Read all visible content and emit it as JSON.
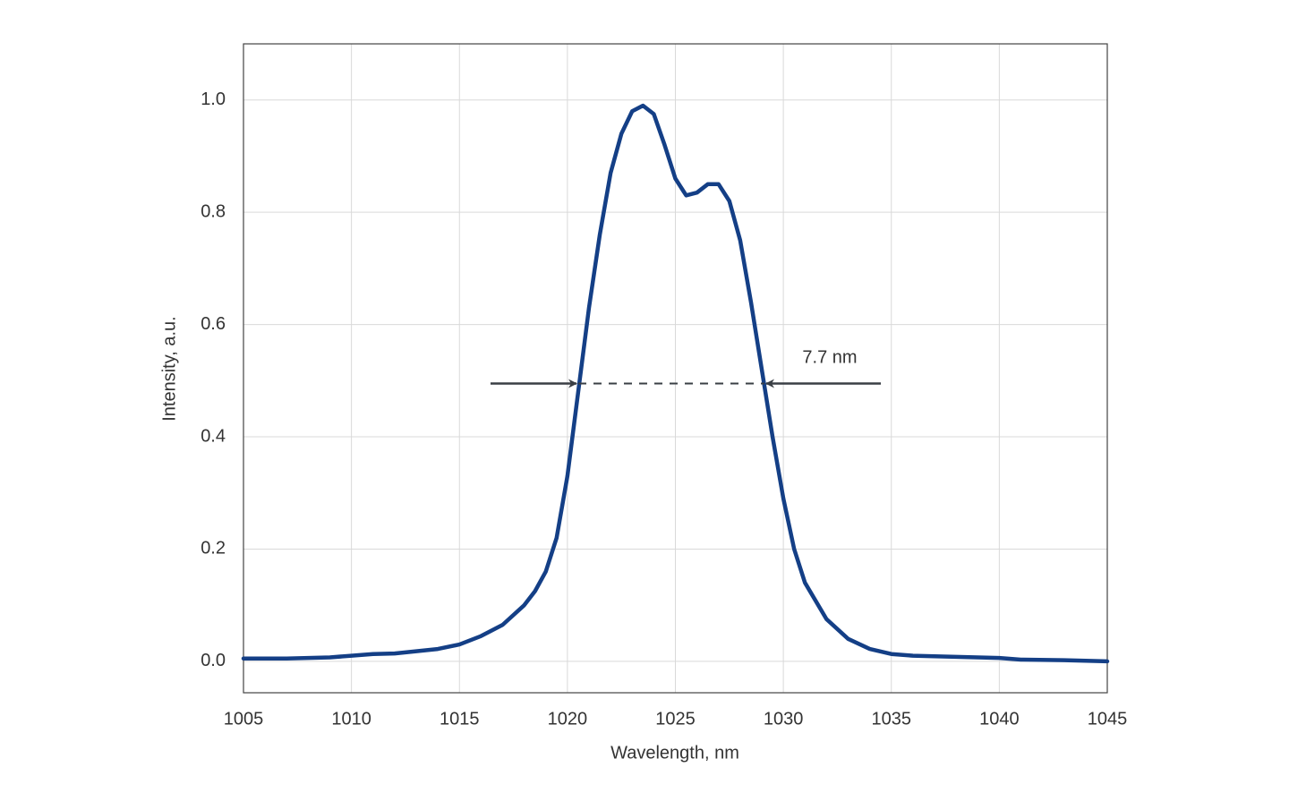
{
  "chart_data": {
    "type": "line",
    "x_label": "Wavelength, nm",
    "y_label": "Intensity, a.u.",
    "annotation": "7.7 nm",
    "grid": true,
    "xlim": [
      1005,
      1045
    ],
    "ylim": [
      -0.056,
      1.1
    ],
    "xticks": [
      1005,
      1010,
      1015,
      1020,
      1025,
      1030,
      1035,
      1040,
      1045
    ],
    "yticks": [
      {
        "value": 0,
        "label": "0.0"
      },
      0.2,
      0.4,
      0.6,
      0.8,
      {
        "value": 1,
        "label": "1.0"
      }
    ],
    "x": [
      1005,
      1007,
      1009,
      1010,
      1011,
      1012,
      1013,
      1014,
      1015,
      1016,
      1017,
      1018,
      1018.5,
      1019,
      1019.5,
      1020,
      1020.5,
      1021,
      1021.5,
      1022,
      1022.5,
      1023,
      1023.5,
      1024,
      1024.5,
      1025,
      1025.5,
      1026,
      1026.5,
      1027,
      1027.5,
      1028,
      1028.5,
      1029,
      1029.5,
      1030,
      1030.5,
      1031,
      1032,
      1033,
      1034,
      1035,
      1036,
      1038,
      1040,
      1041,
      1043,
      1045
    ],
    "series": [
      {
        "color": "#143f86",
        "values": [
          0.005,
          0.005,
          0.007,
          0.01,
          0.013,
          0.014,
          0.018,
          0.022,
          0.03,
          0.045,
          0.065,
          0.1,
          0.125,
          0.16,
          0.22,
          0.33,
          0.48,
          0.63,
          0.76,
          0.87,
          0.94,
          0.98,
          0.99,
          0.975,
          0.92,
          0.86,
          0.83,
          0.835,
          0.85,
          0.85,
          0.82,
          0.75,
          0.64,
          0.52,
          0.4,
          0.29,
          0.2,
          0.14,
          0.075,
          0.04,
          0.022,
          0.013,
          0.01,
          0.008,
          0.006,
          0.003,
          0.002,
          0
        ]
      }
    ]
  }
}
